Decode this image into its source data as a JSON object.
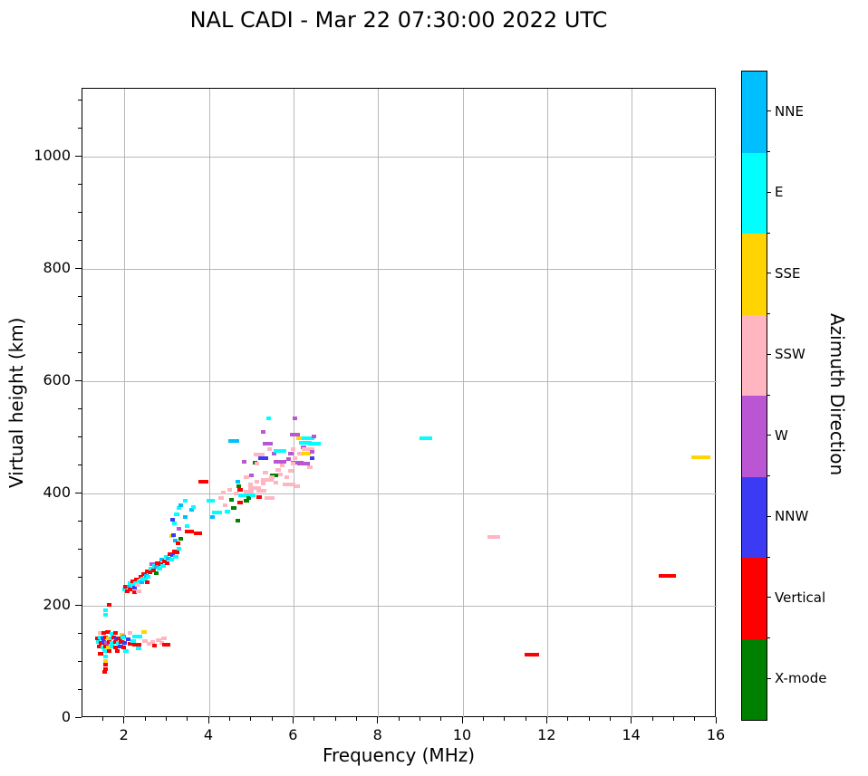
{
  "title": "NAL CADI - Mar 22 07:30:00 2022 UTC",
  "chart_data": {
    "type": "scatter",
    "title": "NAL CADI - Mar 22 07:30:00 2022 UTC",
    "xlabel": "Frequency (MHz)",
    "ylabel": "Virtual height (km)",
    "xlim": [
      1.0,
      16.0
    ],
    "ylim": [
      0,
      1121
    ],
    "xticks": [
      2,
      4,
      6,
      8,
      10,
      12,
      14,
      16
    ],
    "yticks": [
      0,
      200,
      400,
      600,
      800,
      1000
    ],
    "x_minor_step": 0.5,
    "y_minor_step": 50,
    "grid": true,
    "legend_position": "right-colorbar",
    "colorbar": {
      "label": "Azimuth Direction",
      "categories": [
        {
          "name": "NNE",
          "color": "#00BFFF"
        },
        {
          "name": "E",
          "color": "#00FFFF"
        },
        {
          "name": "SSE",
          "color": "#FFD400"
        },
        {
          "name": "SSW",
          "color": "#FFB6C1"
        },
        {
          "name": "W",
          "color": "#BA55D3"
        },
        {
          "name": "NNW",
          "color": "#3B3BF3"
        },
        {
          "name": "Vertical",
          "color": "#FF0000"
        },
        {
          "name": "X-mode",
          "color": "#008000"
        }
      ]
    },
    "point_format": "[freq_MHz, virtual_height_km, azimuth_direction, optional_dash_width_MHz]",
    "points": [
      [
        1.45,
        150,
        "SSW"
      ],
      [
        1.52,
        150,
        "Vertical"
      ],
      [
        1.62,
        151,
        "Vertical"
      ],
      [
        1.72,
        149,
        "E"
      ],
      [
        1.8,
        150,
        "Vertical"
      ],
      [
        1.95,
        147,
        "SSE"
      ],
      [
        2.0,
        143,
        "W"
      ],
      [
        1.38,
        141,
        "Vertical"
      ],
      [
        1.45,
        142,
        "E"
      ],
      [
        1.51,
        141,
        "NNW"
      ],
      [
        1.57,
        142,
        "Vertical"
      ],
      [
        1.63,
        140,
        "SSE"
      ],
      [
        1.7,
        141,
        "E"
      ],
      [
        1.76,
        142,
        "Vertical"
      ],
      [
        1.83,
        140,
        "NNW"
      ],
      [
        1.9,
        141,
        "Vertical"
      ],
      [
        1.97,
        142,
        "E"
      ],
      [
        1.4,
        134,
        "E"
      ],
      [
        1.47,
        133,
        "Vertical"
      ],
      [
        1.53,
        134,
        "NNW"
      ],
      [
        1.6,
        133,
        "W"
      ],
      [
        1.66,
        134,
        "Vertical"
      ],
      [
        1.73,
        133,
        "E"
      ],
      [
        1.8,
        134,
        "Vertical"
      ],
      [
        1.87,
        133,
        "E"
      ],
      [
        1.94,
        134,
        "Vertical"
      ],
      [
        2.02,
        133,
        "NNW"
      ],
      [
        1.42,
        126,
        "Vertical"
      ],
      [
        1.5,
        125,
        "E"
      ],
      [
        1.58,
        126,
        "Vertical"
      ],
      [
        1.64,
        125,
        "SSE"
      ],
      [
        1.72,
        126,
        "E"
      ],
      [
        1.8,
        125,
        "Vertical"
      ],
      [
        1.92,
        126,
        "NNW"
      ],
      [
        2.0,
        125,
        "Vertical"
      ],
      [
        1.55,
        118,
        "E"
      ],
      [
        1.65,
        117,
        "Vertical"
      ],
      [
        1.85,
        118,
        "Vertical"
      ],
      [
        2.05,
        118,
        "E"
      ],
      [
        1.45,
        113,
        "Vertical"
      ],
      [
        1.57,
        108,
        "E"
      ],
      [
        1.57,
        100,
        "SSE"
      ],
      [
        1.57,
        93,
        "Vertical"
      ],
      [
        1.57,
        86,
        "Vertical"
      ],
      [
        1.55,
        80,
        "Vertical"
      ],
      [
        1.57,
        190,
        "E"
      ],
      [
        1.57,
        182,
        "E"
      ],
      [
        1.65,
        200,
        "Vertical"
      ],
      [
        2.15,
        150,
        "SSW"
      ],
      [
        2.32,
        144,
        "E",
        0.25
      ],
      [
        2.48,
        152,
        "SSE"
      ],
      [
        2.1,
        138,
        "NNW"
      ],
      [
        2.16,
        130,
        "Vertical"
      ],
      [
        2.22,
        135,
        "E"
      ],
      [
        2.25,
        129,
        "Vertical"
      ],
      [
        2.35,
        122,
        "E"
      ],
      [
        2.35,
        129,
        "Vertical"
      ],
      [
        2.5,
        135,
        "SSW"
      ],
      [
        2.6,
        131,
        "SSW"
      ],
      [
        2.68,
        134,
        "SSW"
      ],
      [
        2.72,
        128,
        "Vertical"
      ],
      [
        2.82,
        137,
        "SSW"
      ],
      [
        2.9,
        132,
        "SSW"
      ],
      [
        3.0,
        129,
        "Vertical",
        0.2
      ],
      [
        2.95,
        140,
        "SSW"
      ],
      [
        2.02,
        228,
        "E"
      ],
      [
        2.05,
        233,
        "Vertical"
      ],
      [
        2.08,
        224,
        "Vertical"
      ],
      [
        2.12,
        232,
        "NNE"
      ],
      [
        2.15,
        238,
        "E"
      ],
      [
        2.15,
        228,
        "Vertical"
      ],
      [
        2.2,
        235,
        "E"
      ],
      [
        2.22,
        242,
        "Vertical"
      ],
      [
        2.25,
        230,
        "NNW"
      ],
      [
        2.28,
        238,
        "E"
      ],
      [
        2.3,
        245,
        "Vertical"
      ],
      [
        2.33,
        235,
        "SSW"
      ],
      [
        2.36,
        242,
        "E"
      ],
      [
        2.4,
        250,
        "Vertical"
      ],
      [
        2.42,
        240,
        "NNE"
      ],
      [
        2.45,
        247,
        "E"
      ],
      [
        2.48,
        255,
        "Vertical"
      ],
      [
        2.5,
        245,
        "E"
      ],
      [
        2.53,
        252,
        "NNE"
      ],
      [
        2.56,
        260,
        "Vertical"
      ],
      [
        2.58,
        250,
        "E"
      ],
      [
        2.62,
        258,
        "Vertical"
      ],
      [
        2.65,
        265,
        "E"
      ],
      [
        2.67,
        273,
        "W"
      ],
      [
        2.7,
        262,
        "Vertical"
      ],
      [
        2.73,
        270,
        "E"
      ],
      [
        2.77,
        256,
        "X-mode"
      ],
      [
        2.78,
        268,
        "NNE"
      ],
      [
        2.8,
        275,
        "Vertical"
      ],
      [
        2.84,
        265,
        "E"
      ],
      [
        2.87,
        272,
        "Vertical"
      ],
      [
        2.9,
        280,
        "NNE"
      ],
      [
        2.93,
        270,
        "E"
      ],
      [
        2.96,
        278,
        "Vertical"
      ],
      [
        3.0,
        285,
        "E"
      ],
      [
        3.03,
        275,
        "Vertical"
      ],
      [
        3.06,
        283,
        "NNE"
      ],
      [
        3.1,
        290,
        "Vertical"
      ],
      [
        3.13,
        280,
        "E"
      ],
      [
        3.16,
        288,
        "NNW"
      ],
      [
        3.2,
        295,
        "Vertical"
      ],
      [
        3.23,
        285,
        "E"
      ],
      [
        3.26,
        293,
        "Vertical"
      ],
      [
        3.3,
        300,
        "E"
      ],
      [
        3.13,
        323,
        "SSE"
      ],
      [
        3.18,
        325,
        "NNW"
      ],
      [
        3.22,
        315,
        "NNE"
      ],
      [
        3.28,
        310,
        "Vertical"
      ],
      [
        2.25,
        222,
        "Vertical"
      ],
      [
        2.35,
        225,
        "SSW"
      ],
      [
        2.55,
        240,
        "Vertical"
      ],
      [
        3.15,
        352,
        "NNW"
      ],
      [
        3.2,
        345,
        "E"
      ],
      [
        3.25,
        362,
        "E"
      ],
      [
        3.3,
        372,
        "E"
      ],
      [
        3.35,
        378,
        "NNE"
      ],
      [
        3.45,
        356,
        "NNE"
      ],
      [
        3.5,
        340,
        "E"
      ],
      [
        3.55,
        330,
        "Vertical",
        0.2
      ],
      [
        3.75,
        328,
        "Vertical",
        0.2
      ],
      [
        3.3,
        335,
        "W"
      ],
      [
        3.35,
        318,
        "X-mode"
      ],
      [
        3.6,
        370,
        "NNE"
      ],
      [
        3.65,
        375,
        "E"
      ],
      [
        3.45,
        385,
        "E"
      ],
      [
        3.88,
        420,
        "Vertical",
        0.22
      ],
      [
        4.05,
        385,
        "E",
        0.2
      ],
      [
        4.1,
        357,
        "NNE"
      ],
      [
        4.2,
        365,
        "E",
        0.25
      ],
      [
        4.45,
        366,
        "E"
      ],
      [
        4.55,
        387,
        "X-mode"
      ],
      [
        4.6,
        372,
        "X-mode"
      ],
      [
        4.7,
        350,
        "X-mode"
      ],
      [
        4.4,
        378,
        "SSW"
      ],
      [
        4.3,
        390,
        "SSW"
      ],
      [
        4.85,
        395,
        "E",
        0.3
      ],
      [
        4.9,
        386,
        "X-mode"
      ],
      [
        4.75,
        383,
        "Vertical"
      ],
      [
        4.35,
        400,
        "SSW"
      ],
      [
        4.5,
        405,
        "SSW"
      ],
      [
        4.65,
        398,
        "SSW"
      ],
      [
        4.7,
        420,
        "NNE"
      ],
      [
        4.72,
        412,
        "X-mode"
      ],
      [
        4.75,
        405,
        "Vertical"
      ],
      [
        4.95,
        402,
        "SSW",
        0.25
      ],
      [
        5.1,
        408,
        "SSW",
        0.3
      ],
      [
        5.25,
        404,
        "SSW",
        0.25
      ],
      [
        5.0,
        415,
        "SSW"
      ],
      [
        5.15,
        420,
        "SSW"
      ],
      [
        5.3,
        416,
        "SSW"
      ],
      [
        5.45,
        390,
        "SSW",
        0.25
      ],
      [
        5.4,
        422,
        "SSW",
        0.3
      ],
      [
        5.55,
        430,
        "X-mode",
        0.2
      ],
      [
        5.6,
        418,
        "SSW"
      ],
      [
        5.02,
        430,
        "W"
      ],
      [
        4.9,
        428,
        "SSW"
      ],
      [
        5.35,
        435,
        "SSW"
      ],
      [
        5.5,
        428,
        "SSW"
      ],
      [
        5.65,
        440,
        "SSW"
      ],
      [
        5.2,
        392,
        "Vertical"
      ],
      [
        4.95,
        390,
        "X-mode"
      ],
      [
        5.05,
        395,
        "E"
      ],
      [
        5.7,
        433,
        "SSW"
      ],
      [
        5.85,
        428,
        "SSW"
      ],
      [
        5.95,
        438,
        "SSW"
      ],
      [
        5.9,
        415,
        "SSW",
        0.3
      ],
      [
        6.1,
        412,
        "SSW"
      ],
      [
        4.6,
        492,
        "NNE",
        0.25
      ],
      [
        4.85,
        455,
        "W"
      ],
      [
        5.1,
        453,
        "X-mode"
      ],
      [
        5.15,
        452,
        "SSW"
      ],
      [
        5.2,
        468,
        "SSW",
        0.25
      ],
      [
        5.3,
        462,
        "NNW",
        0.25
      ],
      [
        5.4,
        487,
        "W",
        0.25
      ],
      [
        5.45,
        478,
        "SSW"
      ],
      [
        5.55,
        470,
        "W"
      ],
      [
        5.7,
        475,
        "E",
        0.3
      ],
      [
        5.7,
        455,
        "W",
        0.3
      ],
      [
        5.75,
        448,
        "SSW"
      ],
      [
        5.9,
        460,
        "W"
      ],
      [
        6.05,
        503,
        "W",
        0.25
      ],
      [
        6.2,
        497,
        "SSE",
        0.25
      ],
      [
        6.35,
        497,
        "E",
        0.3
      ],
      [
        6.3,
        489,
        "E",
        0.3
      ],
      [
        6.5,
        487,
        "E",
        0.3
      ],
      [
        6.25,
        480,
        "W"
      ],
      [
        6.35,
        478,
        "SSW",
        0.3
      ],
      [
        6.3,
        470,
        "SSE",
        0.25
      ],
      [
        6.45,
        472,
        "W"
      ],
      [
        6.1,
        454,
        "W",
        0.3
      ],
      [
        6.0,
        451,
        "SSW"
      ],
      [
        6.25,
        451,
        "W",
        0.3
      ],
      [
        6.45,
        462,
        "NNW"
      ],
      [
        6.4,
        445,
        "SSW"
      ],
      [
        6.5,
        500,
        "W"
      ],
      [
        6.15,
        470,
        "SSW"
      ],
      [
        6.0,
        478,
        "SSW"
      ],
      [
        5.95,
        470,
        "W"
      ],
      [
        6.05,
        462,
        "SSW"
      ],
      [
        5.3,
        508,
        "W"
      ],
      [
        5.42,
        532,
        "E"
      ],
      [
        6.05,
        532,
        "W"
      ],
      [
        9.15,
        496,
        "E",
        0.3
      ],
      [
        10.75,
        321,
        "SSW",
        0.3
      ],
      [
        11.65,
        111,
        "Vertical",
        0.35
      ],
      [
        14.85,
        252,
        "Vertical",
        0.4
      ],
      [
        15.65,
        463,
        "SSE",
        0.45
      ]
    ]
  }
}
